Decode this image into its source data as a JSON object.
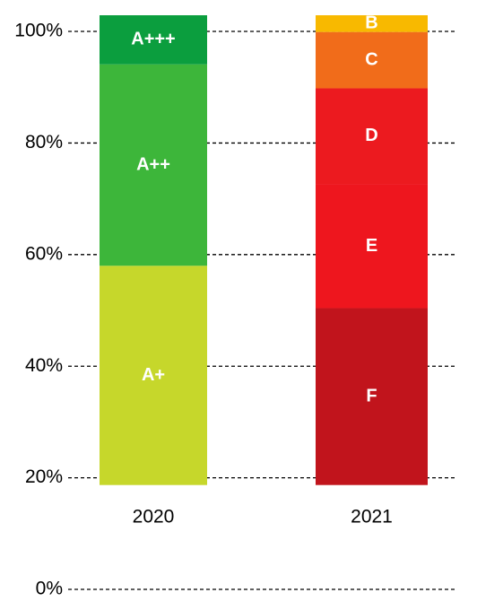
{
  "chart_data": {
    "type": "stacked-bar",
    "categories": [
      "2020",
      "2021"
    ],
    "bar_base": 18.7,
    "stacks": [
      {
        "segments": [
          {
            "label": "A+",
            "value": 39.3,
            "color": "#c6d72b"
          },
          {
            "label": "A++",
            "value": 36.1,
            "color": "#3db63a"
          },
          {
            "label": "A+++",
            "value": 8.8,
            "color": "#0b9e3e"
          }
        ]
      },
      {
        "segments": [
          {
            "label": "F",
            "value": 31.7,
            "color": "#c1141c"
          },
          {
            "label": "E",
            "value": 22.2,
            "color": "#ee161e"
          },
          {
            "label": "D",
            "value": 17.2,
            "color": "#ec1a1f"
          },
          {
            "label": "C",
            "value": 10.1,
            "color": "#f16c1a"
          },
          {
            "label": "B",
            "value": 3.0,
            "color": "#f8b900"
          }
        ]
      }
    ],
    "ylim": [
      0,
      102.9
    ],
    "yticks": [
      {
        "value": 0,
        "label": "0%"
      },
      {
        "value": 20,
        "label": "20%"
      },
      {
        "value": 40,
        "label": "40%"
      },
      {
        "value": 60,
        "label": "60%"
      },
      {
        "value": 80,
        "label": "80%"
      },
      {
        "value": 100,
        "label": "100%"
      }
    ],
    "grid": true
  }
}
